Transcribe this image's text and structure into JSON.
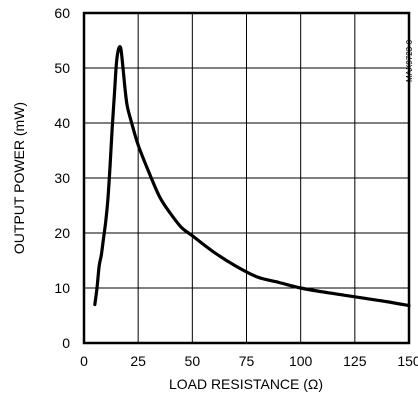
{
  "chart_data": {
    "type": "line",
    "xlabel": "LOAD RESISTANCE (Ω)",
    "ylabel": "OUTPUT POWER (mW)",
    "xlim": [
      0,
      150
    ],
    "ylim": [
      0,
      60
    ],
    "grid": true,
    "x_ticks": [
      "0",
      "25",
      "50",
      "75",
      "100",
      "125",
      "150"
    ],
    "y_ticks": [
      "0",
      "10",
      "20",
      "30",
      "40",
      "50",
      "60"
    ],
    "series": [
      {
        "x": [
          5,
          6,
          7,
          8,
          9,
          10,
          11,
          12,
          13,
          14,
          15,
          16,
          17,
          18,
          19,
          20,
          22,
          25,
          30,
          35,
          40,
          45,
          50,
          60,
          70,
          80,
          90,
          100,
          110,
          120,
          130,
          140,
          150
        ],
        "y": [
          7,
          10,
          14,
          16,
          19,
          22,
          26,
          32,
          39,
          45,
          51,
          53.5,
          53.5,
          50,
          46,
          43,
          40,
          36,
          31,
          26.5,
          23.5,
          21,
          19.5,
          16.5,
          14,
          12,
          11,
          10,
          9.3,
          8.7,
          8.1,
          7.5,
          6.8
        ]
      }
    ],
    "side_text": "MAX9723-0"
  }
}
